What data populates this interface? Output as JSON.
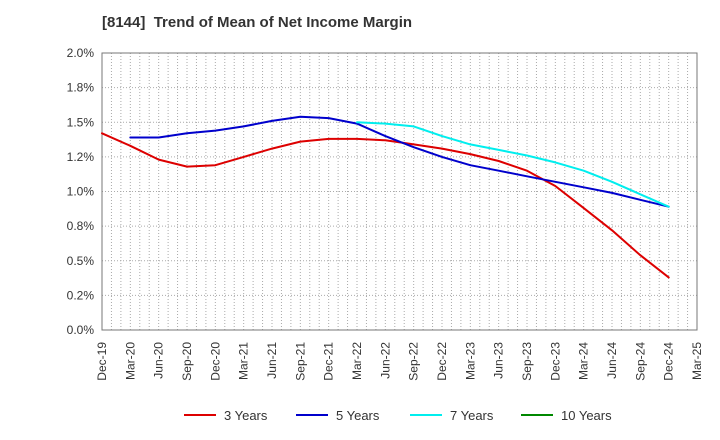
{
  "chart_data": {
    "type": "line",
    "title": "[8144]  Trend of Mean of Net Income Margin",
    "xlabel": "",
    "ylabel": "",
    "x": [
      "Dec-19",
      "Mar-20",
      "Jun-20",
      "Sep-20",
      "Dec-20",
      "Mar-21",
      "Jun-21",
      "Sep-21",
      "Dec-21",
      "Mar-22",
      "Jun-22",
      "Sep-22",
      "Dec-22",
      "Mar-23",
      "Jun-23",
      "Sep-23",
      "Dec-23",
      "Mar-24",
      "Jun-24",
      "Sep-24",
      "Dec-24",
      "Mar-25"
    ],
    "yticks": [
      "0.0%",
      "0.2%",
      "0.5%",
      "0.8%",
      "1.0%",
      "1.2%",
      "1.5%",
      "1.8%",
      "2.0%"
    ],
    "ylim": [
      0,
      2.0
    ],
    "grid": true,
    "legend_position": "bottom",
    "series": [
      {
        "name": "3 Years",
        "color": "#dd0000",
        "values": [
          1.42,
          1.33,
          1.23,
          1.18,
          1.19,
          1.25,
          1.31,
          1.36,
          1.38,
          1.38,
          1.37,
          1.34,
          1.31,
          1.27,
          1.22,
          1.15,
          1.04,
          0.88,
          0.72,
          0.54,
          0.38,
          null
        ]
      },
      {
        "name": "5 Years",
        "color": "#0000cc",
        "values": [
          null,
          1.39,
          1.39,
          1.42,
          1.44,
          1.47,
          1.51,
          1.54,
          1.53,
          1.49,
          1.4,
          1.32,
          1.25,
          1.19,
          1.15,
          1.11,
          1.07,
          1.03,
          0.99,
          0.94,
          0.89,
          null
        ]
      },
      {
        "name": "7 Years",
        "color": "#00eeee",
        "values": [
          null,
          null,
          null,
          null,
          null,
          null,
          null,
          null,
          null,
          1.5,
          1.49,
          1.47,
          1.4,
          1.34,
          1.3,
          1.26,
          1.21,
          1.15,
          1.07,
          0.98,
          0.89,
          null
        ]
      },
      {
        "name": "10 Years",
        "color": "#008800",
        "values": [
          null,
          null,
          null,
          null,
          null,
          null,
          null,
          null,
          null,
          null,
          null,
          null,
          null,
          null,
          null,
          null,
          null,
          null,
          null,
          null,
          null,
          null
        ]
      }
    ]
  }
}
